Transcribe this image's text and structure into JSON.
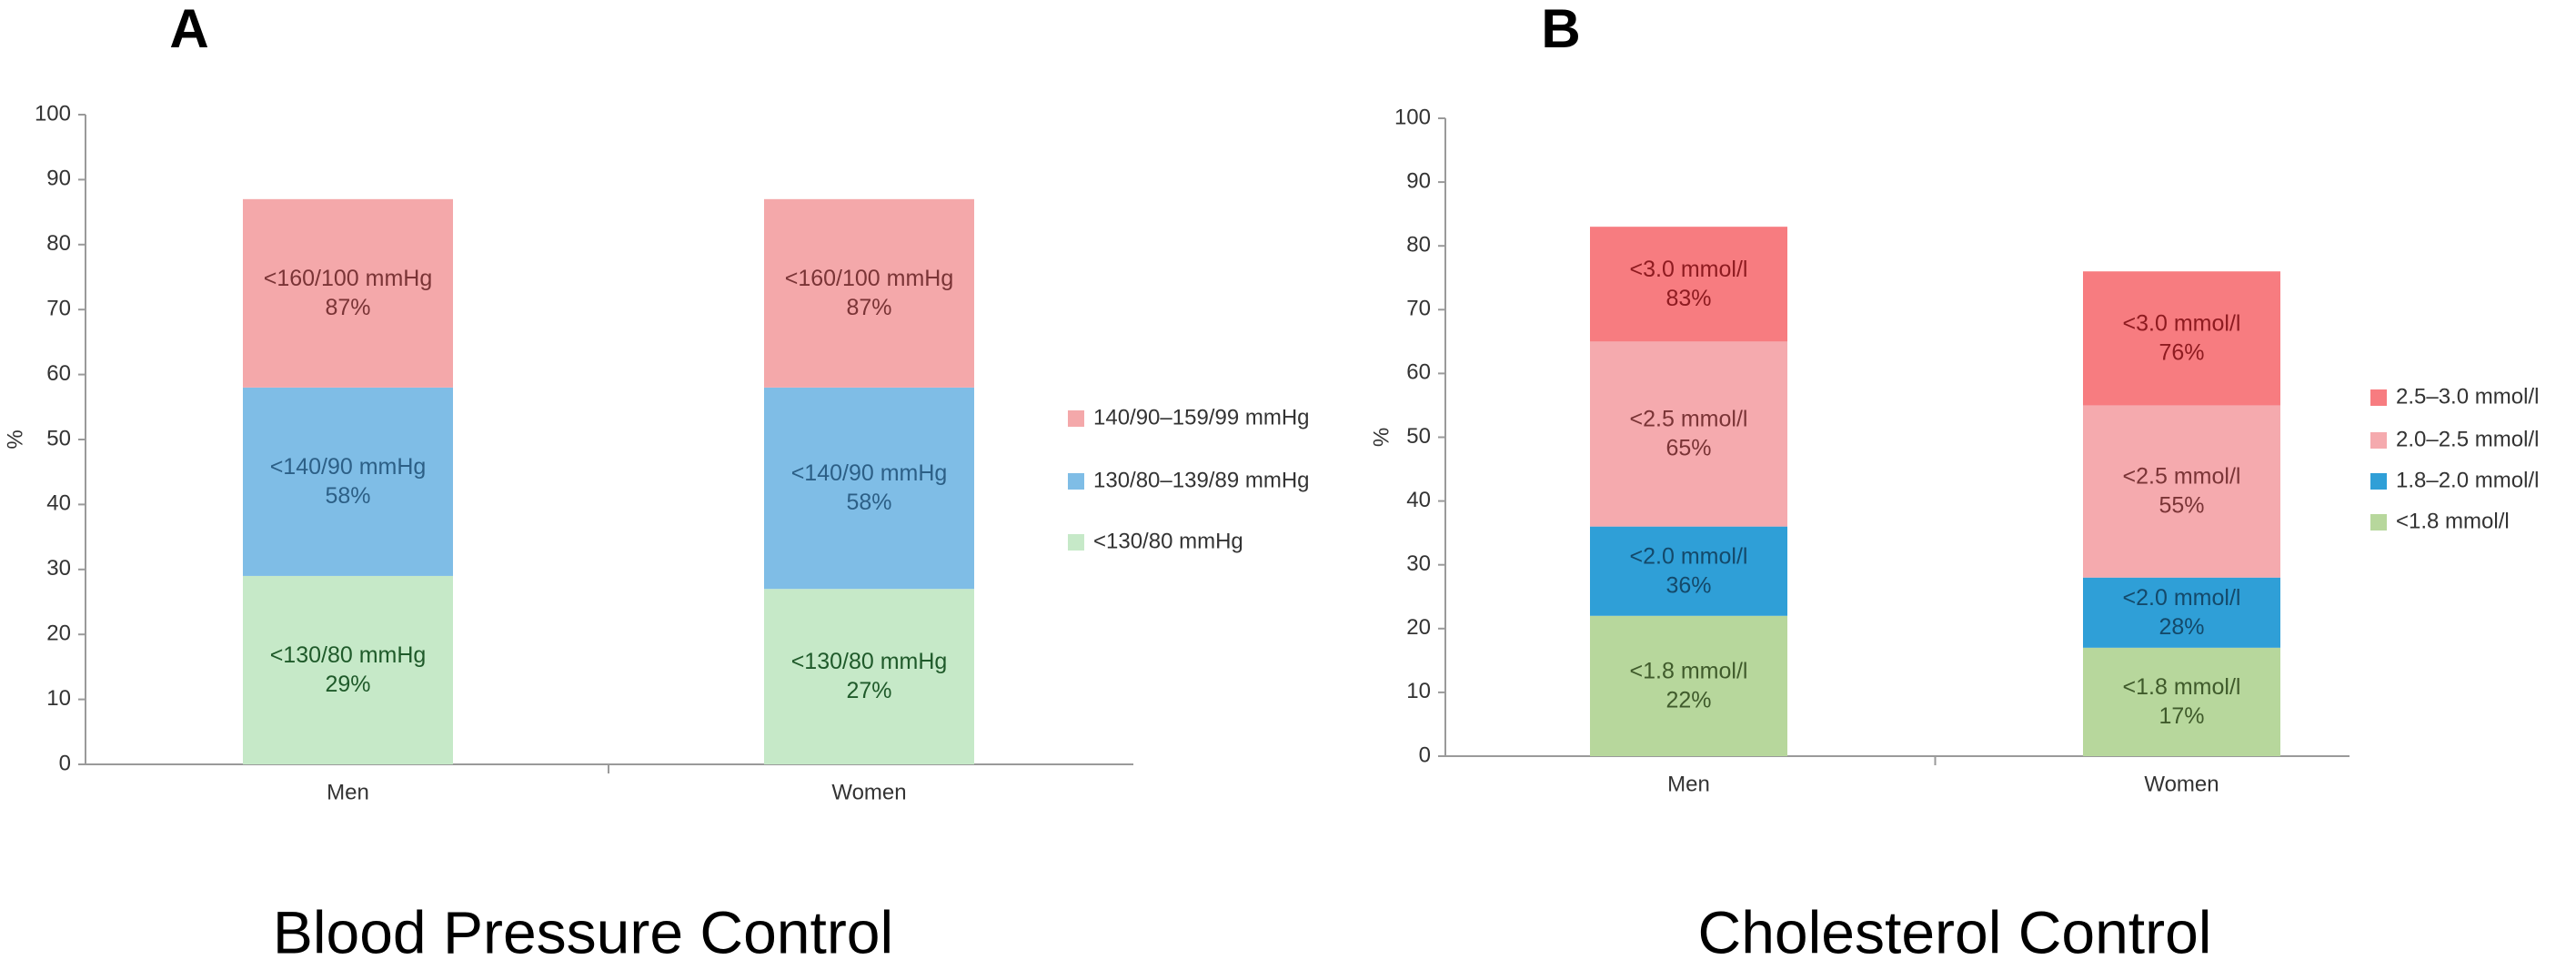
{
  "chart_data": [
    {
      "type": "bar",
      "stacked": true,
      "panel": "A",
      "title": "Blood Pressure Control",
      "y_label": "%",
      "categories": [
        "Men",
        "Women"
      ],
      "series": [
        {
          "name": "<130/80 mmHg",
          "color": "#c6e9c8",
          "label_color": "#1f5a2a",
          "values": [
            29,
            27
          ],
          "segment_title": "<130/80 mmHg",
          "segment_labels": [
            "29%",
            "27%"
          ]
        },
        {
          "name": "130/80–139/89 mmHg",
          "color": "#7fbde6",
          "label_color": "#2c5f86",
          "values": [
            29,
            31
          ],
          "segment_title": "<140/90 mmHg",
          "segment_labels": [
            "58%",
            "58%"
          ]
        },
        {
          "name": "140/90–159/99 mmHg",
          "color": "#f4a8aa",
          "label_color": "#7a3436",
          "values": [
            29,
            29
          ],
          "segment_title": "<160/100 mmHg",
          "segment_labels": [
            "87%",
            "87%"
          ]
        }
      ],
      "ylim": [
        0,
        100
      ],
      "yticks": [
        0,
        10,
        20,
        30,
        40,
        50,
        60,
        70,
        80,
        90,
        100
      ],
      "legend": "right"
    },
    {
      "type": "bar",
      "stacked": true,
      "panel": "B",
      "title": "Cholesterol Control",
      "y_label": "%",
      "categories": [
        "Men",
        "Women"
      ],
      "series": [
        {
          "name": "<1.8 mmol/l",
          "color": "#b7d79c",
          "label_color": "#3f5a2b",
          "values": [
            22,
            17
          ],
          "segment_title": "<1.8 mmol/l",
          "segment_labels": [
            "22%",
            "17%"
          ]
        },
        {
          "name": "1.8–2.0 mmol/l",
          "color": "#2f9fd7",
          "label_color": "#14496a",
          "values": [
            14,
            11
          ],
          "segment_title": "<2.0 mmol/l",
          "segment_labels": [
            "36%",
            "28%"
          ]
        },
        {
          "name": "2.0–2.5 mmol/l",
          "color": "#f5aaae",
          "label_color": "#7a3436",
          "values": [
            29,
            27
          ],
          "segment_title": "<2.5 mmol/l",
          "segment_labels": [
            "65%",
            "55%"
          ]
        },
        {
          "name": "2.5–3.0 mmol/l",
          "color": "#f77c80",
          "label_color": "#8e1b20",
          "values": [
            18,
            21
          ],
          "segment_title": "<3.0 mmol/l",
          "segment_labels": [
            "83%",
            "76%"
          ]
        }
      ],
      "ylim": [
        0,
        100
      ],
      "yticks": [
        0,
        10,
        20,
        30,
        40,
        50,
        60,
        70,
        80,
        90,
        100
      ],
      "legend": "right"
    }
  ]
}
